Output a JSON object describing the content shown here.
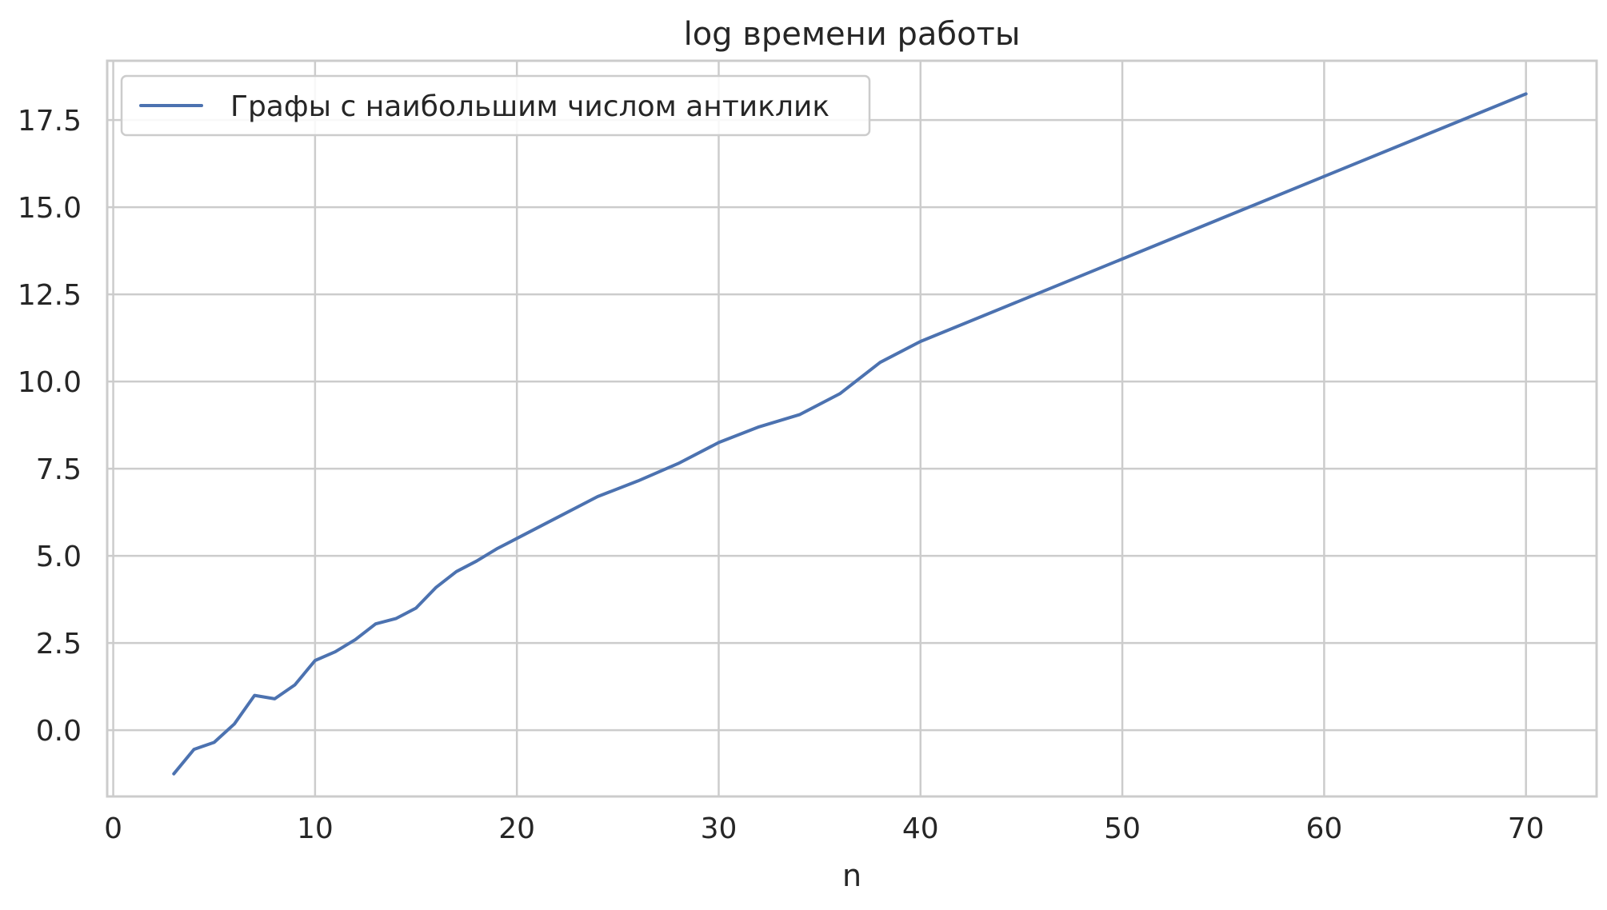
{
  "chart_data": {
    "type": "line",
    "title": "log  времени работы",
    "xlabel": "n",
    "ylabel": "",
    "xlim": [
      -0.3,
      73.5
    ],
    "ylim": [
      -1.9,
      19.2
    ],
    "xticks": [
      0,
      10,
      20,
      30,
      40,
      50,
      60,
      70
    ],
    "yticks": [
      0.0,
      2.5,
      5.0,
      7.5,
      10.0,
      12.5,
      15.0,
      17.5
    ],
    "xtick_labels": [
      "0",
      "10",
      "20",
      "30",
      "40",
      "50",
      "60",
      "70"
    ],
    "ytick_labels": [
      "0.0",
      "2.5",
      "5.0",
      "7.5",
      "10.0",
      "12.5",
      "15.0",
      "17.5"
    ],
    "grid": true,
    "legend_position": "top-left",
    "series": [
      {
        "name": "Графы с наибольшим числом антиклик",
        "color": "#4c72b0",
        "x": [
          3,
          4,
          5,
          6,
          7,
          8,
          9,
          10,
          11,
          12,
          13,
          14,
          15,
          16,
          17,
          18,
          19,
          20,
          22,
          24,
          26,
          28,
          30,
          32,
          34,
          36,
          38,
          40,
          70
        ],
        "y": [
          -1.25,
          -0.55,
          -0.35,
          0.18,
          1.0,
          0.9,
          1.3,
          2.0,
          2.25,
          2.6,
          3.05,
          3.2,
          3.5,
          4.1,
          4.55,
          4.85,
          5.2,
          5.5,
          6.1,
          6.7,
          7.15,
          7.65,
          8.25,
          8.7,
          9.05,
          9.65,
          10.55,
          11.15,
          18.25
        ]
      }
    ]
  }
}
